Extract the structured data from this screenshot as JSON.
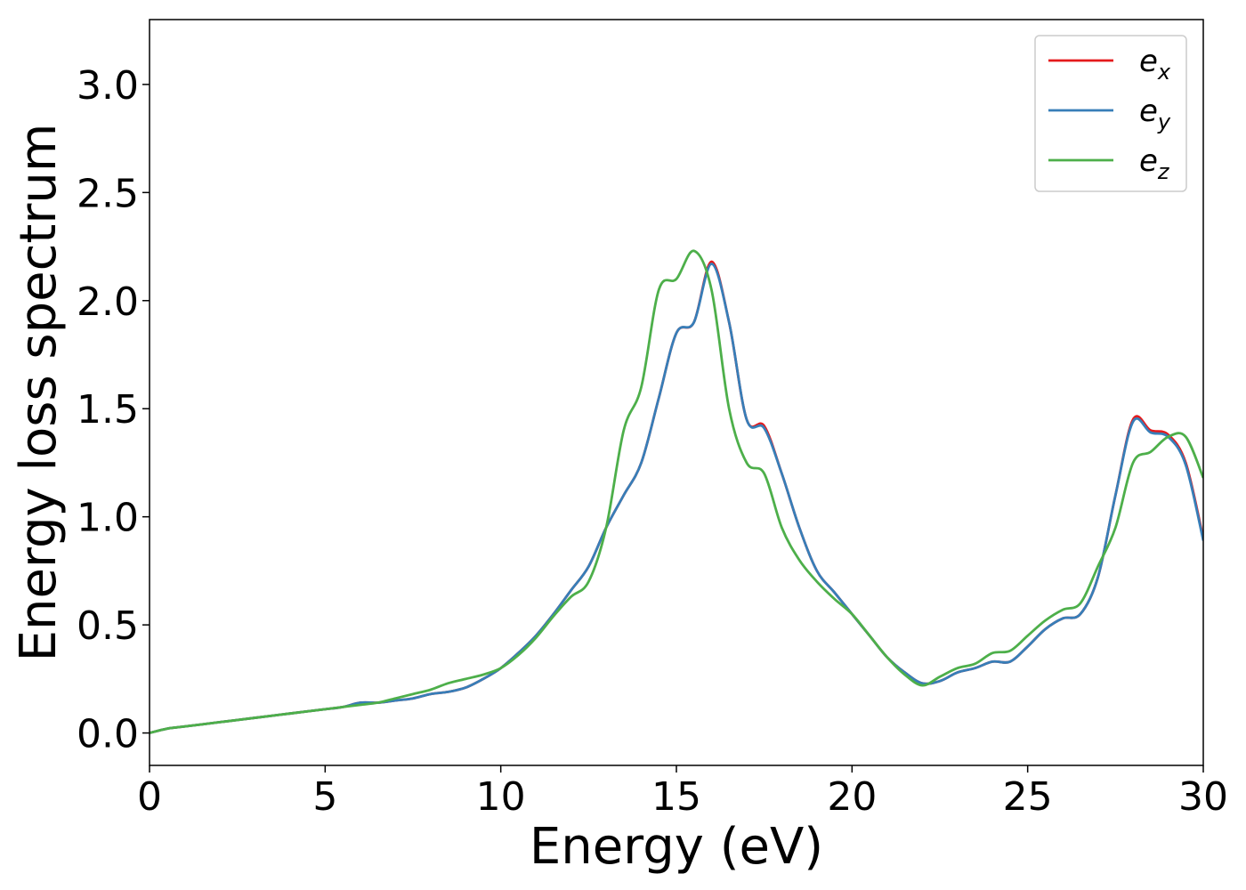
{
  "chart_data": {
    "type": "line",
    "title": "",
    "xlabel": "Energy (eV)",
    "ylabel": "Energy loss spectrum",
    "xlim": [
      0,
      30
    ],
    "ylim": [
      -0.15,
      3.3
    ],
    "x_ticks": [
      0,
      5,
      10,
      15,
      20,
      25,
      30
    ],
    "x_tick_labels": [
      "0",
      "5",
      "10",
      "15",
      "20",
      "25",
      "30"
    ],
    "y_ticks": [
      0.0,
      0.5,
      1.0,
      1.5,
      2.0,
      2.5,
      3.0
    ],
    "y_tick_labels": [
      "0.0",
      "0.5",
      "1.0",
      "1.5",
      "2.0",
      "2.5",
      "3.0"
    ],
    "grid": false,
    "legend_position": "top-right",
    "legend_entries": [
      {
        "base": "e",
        "sub": "x"
      },
      {
        "base": "e",
        "sub": "y"
      },
      {
        "base": "e",
        "sub": "z"
      }
    ],
    "x": [
      0,
      0.5,
      1,
      1.5,
      2,
      2.5,
      3,
      3.5,
      4,
      4.5,
      5,
      5.5,
      6,
      6.5,
      7,
      7.5,
      8,
      8.5,
      9,
      9.5,
      10,
      10.5,
      11,
      11.5,
      12,
      12.5,
      13,
      13.5,
      14,
      14.5,
      15,
      15.5,
      16,
      16.5,
      17,
      17.5,
      18,
      18.5,
      19,
      19.5,
      20,
      20.5,
      21,
      21.5,
      22,
      22.5,
      23,
      23.5,
      24,
      24.5,
      25,
      25.5,
      26,
      26.5,
      27,
      27.5,
      28,
      28.5,
      29,
      29.5,
      30
    ],
    "series": [
      {
        "name": "e_x",
        "color": "#e41a1c",
        "values": [
          0.0,
          0.02,
          0.03,
          0.04,
          0.05,
          0.06,
          0.07,
          0.08,
          0.09,
          0.1,
          0.11,
          0.12,
          0.14,
          0.14,
          0.15,
          0.16,
          0.18,
          0.19,
          0.21,
          0.25,
          0.3,
          0.37,
          0.45,
          0.55,
          0.66,
          0.77,
          0.95,
          1.1,
          1.25,
          1.55,
          1.85,
          1.9,
          2.18,
          1.9,
          1.45,
          1.42,
          1.2,
          0.95,
          0.75,
          0.65,
          0.55,
          0.45,
          0.35,
          0.28,
          0.23,
          0.24,
          0.28,
          0.3,
          0.33,
          0.33,
          0.4,
          0.48,
          0.53,
          0.55,
          0.72,
          1.1,
          1.45,
          1.4,
          1.38,
          1.25,
          0.9
        ]
      },
      {
        "name": "e_y",
        "color": "#377eb8",
        "values": [
          0.0,
          0.02,
          0.03,
          0.04,
          0.05,
          0.06,
          0.07,
          0.08,
          0.09,
          0.1,
          0.11,
          0.12,
          0.14,
          0.14,
          0.15,
          0.16,
          0.18,
          0.19,
          0.21,
          0.25,
          0.3,
          0.37,
          0.45,
          0.55,
          0.66,
          0.77,
          0.95,
          1.1,
          1.25,
          1.55,
          1.85,
          1.9,
          2.17,
          1.9,
          1.45,
          1.41,
          1.2,
          0.95,
          0.75,
          0.65,
          0.55,
          0.45,
          0.35,
          0.28,
          0.23,
          0.24,
          0.28,
          0.3,
          0.33,
          0.33,
          0.4,
          0.48,
          0.53,
          0.55,
          0.72,
          1.1,
          1.44,
          1.39,
          1.37,
          1.24,
          0.89
        ]
      },
      {
        "name": "e_z",
        "color": "#4daf4a",
        "values": [
          0.0,
          0.02,
          0.03,
          0.04,
          0.05,
          0.06,
          0.07,
          0.08,
          0.09,
          0.1,
          0.11,
          0.12,
          0.13,
          0.14,
          0.16,
          0.18,
          0.2,
          0.23,
          0.25,
          0.27,
          0.3,
          0.36,
          0.44,
          0.54,
          0.63,
          0.7,
          0.95,
          1.4,
          1.6,
          2.05,
          2.1,
          2.23,
          2.05,
          1.5,
          1.25,
          1.2,
          0.95,
          0.8,
          0.7,
          0.62,
          0.55,
          0.45,
          0.35,
          0.27,
          0.22,
          0.26,
          0.3,
          0.32,
          0.37,
          0.38,
          0.45,
          0.52,
          0.57,
          0.6,
          0.77,
          0.95,
          1.25,
          1.3,
          1.37,
          1.37,
          1.18
        ]
      }
    ]
  }
}
